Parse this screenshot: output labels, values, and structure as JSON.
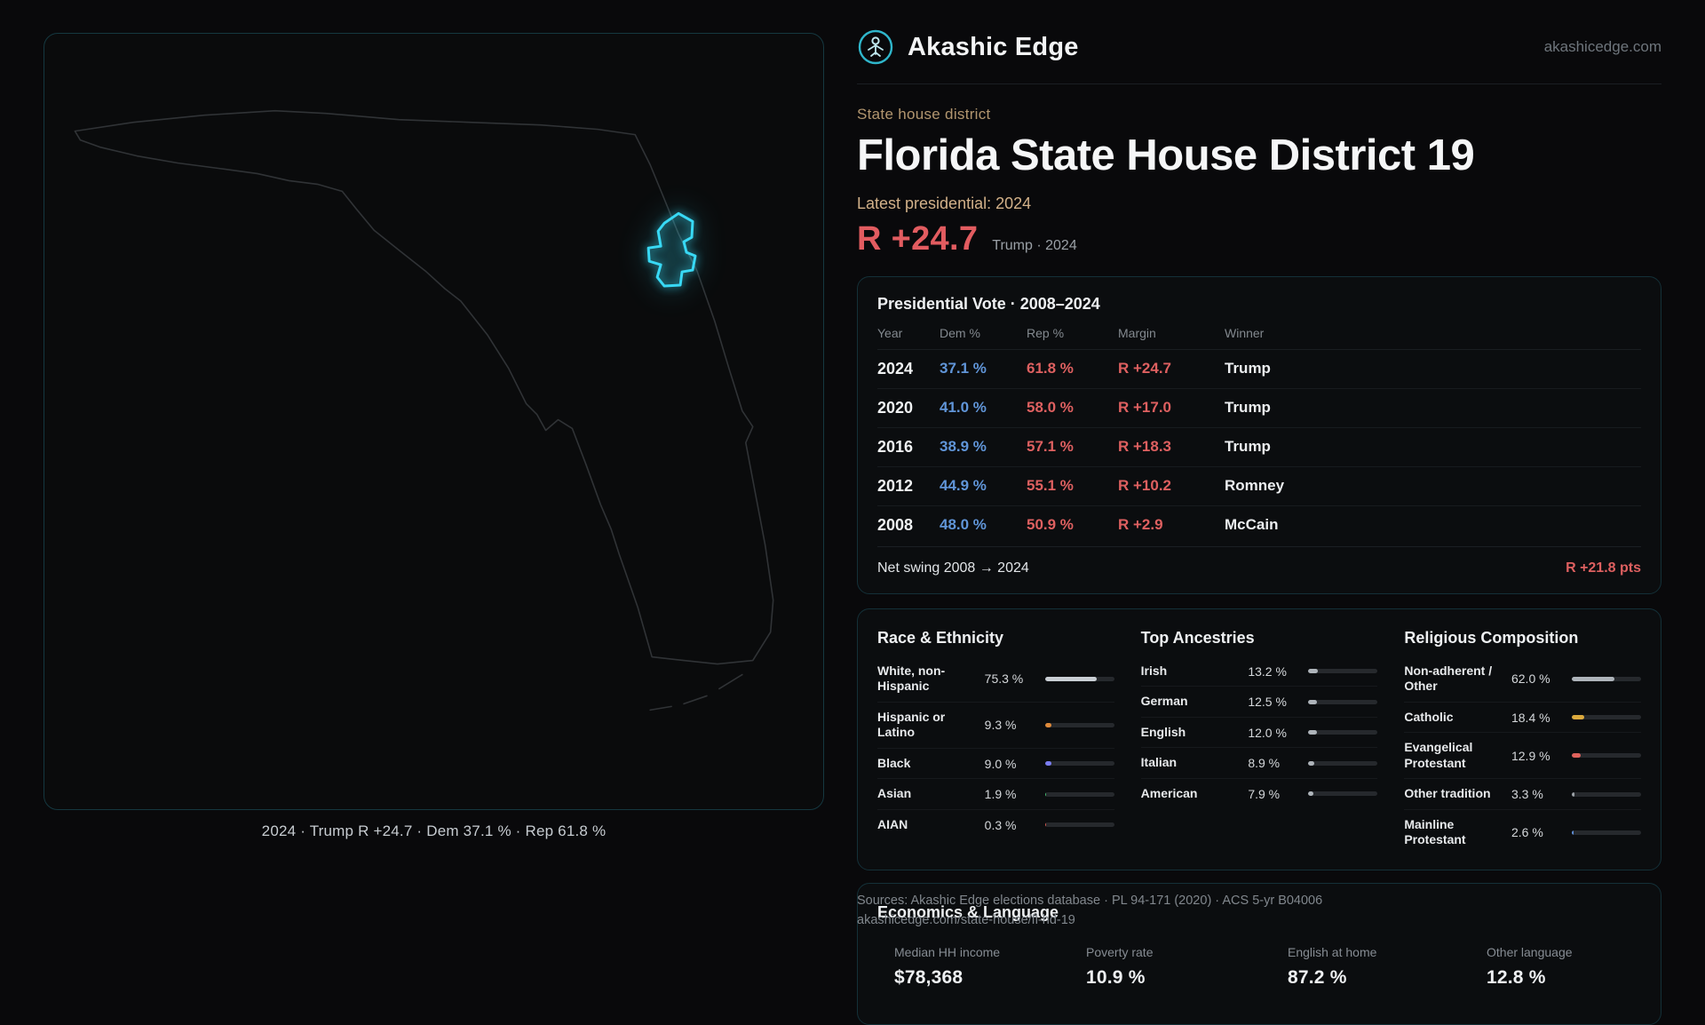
{
  "brand": {
    "name": "Akashic Edge",
    "domain": "akashicedge.com"
  },
  "page": {
    "kicker": "State house district",
    "title": "Florida State House District 19",
    "latest_label": "Latest presidential: 2024",
    "headline_margin": "R +24.7",
    "headline_sub": "Trump · 2024"
  },
  "map": {
    "caption": "2024 · Trump R +24.7 · Dem 37.1 % · Rep 61.8 %",
    "district_color": "#38d9f5"
  },
  "presidential": {
    "title": "Presidential Vote · 2008–2024",
    "columns": {
      "year": "Year",
      "dem": "Dem %",
      "rep": "Rep %",
      "margin": "Margin",
      "winner": "Winner"
    },
    "rows": [
      {
        "year": "2024",
        "dem": "37.1 %",
        "rep": "61.8 %",
        "margin": "R +24.7",
        "winner": "Trump"
      },
      {
        "year": "2020",
        "dem": "41.0 %",
        "rep": "58.0 %",
        "margin": "R +17.0",
        "winner": "Trump"
      },
      {
        "year": "2016",
        "dem": "38.9 %",
        "rep": "57.1 %",
        "margin": "R +18.3",
        "winner": "Trump"
      },
      {
        "year": "2012",
        "dem": "44.9 %",
        "rep": "55.1 %",
        "margin": "R +10.2",
        "winner": "Romney"
      },
      {
        "year": "2008",
        "dem": "48.0 %",
        "rep": "50.9 %",
        "margin": "R +2.9",
        "winner": "McCain"
      }
    ],
    "net_swing_label": "Net swing 2008 → 2024",
    "net_swing_value": "R +21.8 pts"
  },
  "race": {
    "title": "Race & Ethnicity",
    "rows": [
      {
        "label": "White, non-Hispanic",
        "value": "75.3 %",
        "pct": 75.3,
        "color": "#c9ced4"
      },
      {
        "label": "Hispanic or Latino",
        "value": "9.3 %",
        "pct": 9.3,
        "color": "#e08a3a"
      },
      {
        "label": "Black",
        "value": "9.0 %",
        "pct": 9.0,
        "color": "#7b7df2"
      },
      {
        "label": "Asian",
        "value": "1.9 %",
        "pct": 1.9,
        "color": "#43b96e"
      },
      {
        "label": "AIAN",
        "value": "0.3 %",
        "pct": 0.3,
        "color": "#d0564f"
      }
    ]
  },
  "ancestries": {
    "title": "Top Ancestries",
    "rows": [
      {
        "label": "Irish",
        "value": "13.2 %",
        "pct": 13.2,
        "color": "#aeb4ba"
      },
      {
        "label": "German",
        "value": "12.5 %",
        "pct": 12.5,
        "color": "#aeb4ba"
      },
      {
        "label": "English",
        "value": "12.0 %",
        "pct": 12.0,
        "color": "#aeb4ba"
      },
      {
        "label": "Italian",
        "value": "8.9 %",
        "pct": 8.9,
        "color": "#aeb4ba"
      },
      {
        "label": "American",
        "value": "7.9 %",
        "pct": 7.9,
        "color": "#aeb4ba"
      }
    ]
  },
  "religion": {
    "title": "Religious Composition",
    "rows": [
      {
        "label": "Non-adherent / Other",
        "value": "62.0 %",
        "pct": 62.0,
        "color": "#aeb4ba"
      },
      {
        "label": "Catholic",
        "value": "18.4 %",
        "pct": 18.4,
        "color": "#dcaa3d"
      },
      {
        "label": "Evangelical Protestant",
        "value": "12.9 %",
        "pct": 12.9,
        "color": "#e0625c"
      },
      {
        "label": "Other tradition",
        "value": "3.3 %",
        "pct": 3.3,
        "color": "#9aa0a6"
      },
      {
        "label": "Mainline Protestant",
        "value": "2.6 %",
        "pct": 2.6,
        "color": "#5f8fd6"
      }
    ]
  },
  "economics": {
    "title": "Economics & Language",
    "stats": [
      {
        "label": "Median HH income",
        "value": "$78,368"
      },
      {
        "label": "Poverty rate",
        "value": "10.9 %"
      },
      {
        "label": "English at home",
        "value": "87.2 %"
      },
      {
        "label": "Other language",
        "value": "12.8 %"
      }
    ]
  },
  "sources": {
    "line1": "Sources: Akashic Edge elections database · PL 94-171 (2020) · ACS 5-yr B04006",
    "line2": "akashicedge.com/state-house/fl-hd-19"
  }
}
